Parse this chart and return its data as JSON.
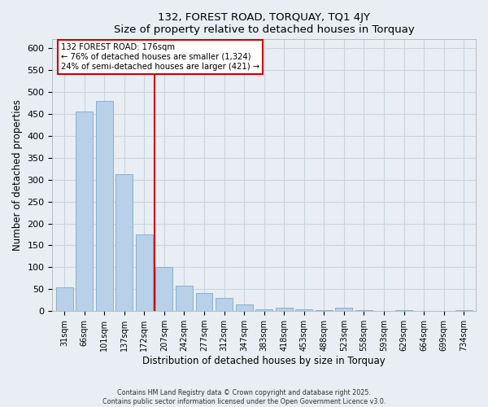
{
  "title": "132, FOREST ROAD, TORQUAY, TQ1 4JY",
  "subtitle": "Size of property relative to detached houses in Torquay",
  "xlabel": "Distribution of detached houses by size in Torquay",
  "ylabel": "Number of detached properties",
  "bar_labels": [
    "31sqm",
    "66sqm",
    "101sqm",
    "137sqm",
    "172sqm",
    "207sqm",
    "242sqm",
    "277sqm",
    "312sqm",
    "347sqm",
    "383sqm",
    "418sqm",
    "453sqm",
    "488sqm",
    "523sqm",
    "558sqm",
    "593sqm",
    "629sqm",
    "664sqm",
    "699sqm",
    "734sqm"
  ],
  "bar_values": [
    55,
    455,
    480,
    313,
    175,
    100,
    58,
    42,
    30,
    15,
    5,
    8,
    5,
    2,
    8,
    2,
    0,
    2,
    0,
    0,
    2
  ],
  "bar_color": "#b8d0e8",
  "bar_edge_color": "#8ab0cc",
  "vline_x": 4.5,
  "vline_color": "#cc0000",
  "annotation_title": "132 FOREST ROAD: 176sqm",
  "annotation_line1": "← 76% of detached houses are smaller (1,324)",
  "annotation_line2": "24% of semi-detached houses are larger (421) →",
  "annotation_box_color": "#ffffff",
  "annotation_box_edge": "#cc0000",
  "ylim": [
    0,
    620
  ],
  "yticks": [
    0,
    50,
    100,
    150,
    200,
    250,
    300,
    350,
    400,
    450,
    500,
    550,
    600
  ],
  "footer_line1": "Contains HM Land Registry data © Crown copyright and database right 2025.",
  "footer_line2": "Contains public sector information licensed under the Open Government Licence v3.0.",
  "bg_color": "#e8eef4",
  "grid_color": "#c8d4dc"
}
